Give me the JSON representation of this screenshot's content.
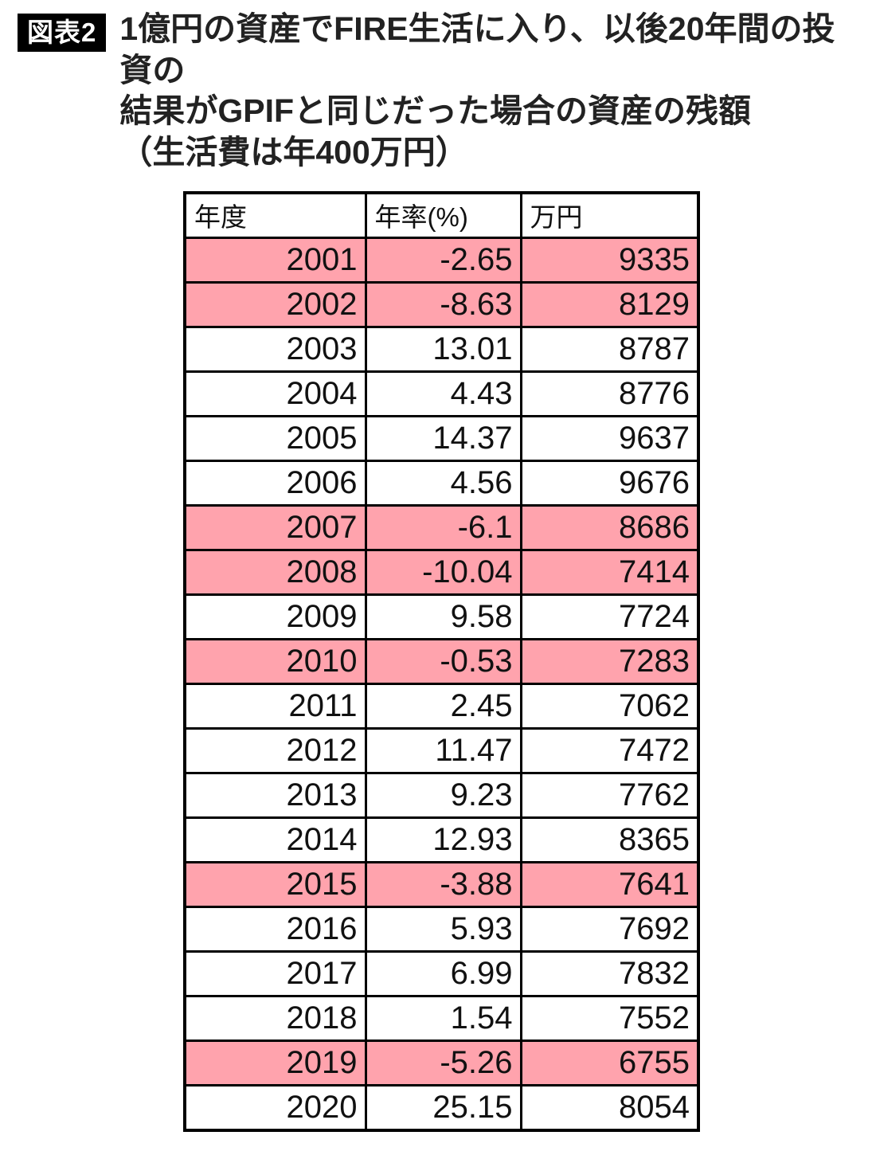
{
  "header": {
    "badge": "図表2",
    "title_lines": [
      "1億円の資産でFIRE生活に入り、以後20年間の投資の",
      "結果がGPIFと同じだった場合の資産の残額",
      "（生活費は年400万円）"
    ]
  },
  "table": {
    "columns": [
      "年度",
      "年率(%)",
      "万円"
    ],
    "rows": [
      {
        "year": "2001",
        "rate": "-2.65",
        "amount": "9335",
        "highlight": true
      },
      {
        "year": "2002",
        "rate": "-8.63",
        "amount": "8129",
        "highlight": true
      },
      {
        "year": "2003",
        "rate": "13.01",
        "amount": "8787",
        "highlight": false
      },
      {
        "year": "2004",
        "rate": "4.43",
        "amount": "8776",
        "highlight": false
      },
      {
        "year": "2005",
        "rate": "14.37",
        "amount": "9637",
        "highlight": false
      },
      {
        "year": "2006",
        "rate": "4.56",
        "amount": "9676",
        "highlight": false
      },
      {
        "year": "2007",
        "rate": "-6.1",
        "amount": "8686",
        "highlight": true
      },
      {
        "year": "2008",
        "rate": "-10.04",
        "amount": "7414",
        "highlight": true
      },
      {
        "year": "2009",
        "rate": "9.58",
        "amount": "7724",
        "highlight": false
      },
      {
        "year": "2010",
        "rate": "-0.53",
        "amount": "7283",
        "highlight": true
      },
      {
        "year": "2011",
        "rate": "2.45",
        "amount": "7062",
        "highlight": false
      },
      {
        "year": "2012",
        "rate": "11.47",
        "amount": "7472",
        "highlight": false
      },
      {
        "year": "2013",
        "rate": "9.23",
        "amount": "7762",
        "highlight": false
      },
      {
        "year": "2014",
        "rate": "12.93",
        "amount": "8365",
        "highlight": false
      },
      {
        "year": "2015",
        "rate": "-3.88",
        "amount": "7641",
        "highlight": true
      },
      {
        "year": "2016",
        "rate": "5.93",
        "amount": "7692",
        "highlight": false
      },
      {
        "year": "2017",
        "rate": "6.99",
        "amount": "7832",
        "highlight": false
      },
      {
        "year": "2018",
        "rate": "1.54",
        "amount": "7552",
        "highlight": false
      },
      {
        "year": "2019",
        "rate": "-5.26",
        "amount": "6755",
        "highlight": true
      },
      {
        "year": "2020",
        "rate": "25.15",
        "amount": "8054",
        "highlight": false
      }
    ]
  },
  "colors": {
    "row_highlight": "#ffa3ad",
    "badge_bg": "#000000",
    "badge_text": "#ffffff",
    "border": "#000000"
  },
  "chart_data": {
    "type": "table",
    "title": "1億円の資産でFIRE生活に入り、以後20年間の投資の結果がGPIFと同じだった場合の資産の残額（生活費は年400万円）",
    "columns": [
      "年度",
      "年率(%)",
      "万円"
    ],
    "rows": [
      [
        2001,
        -2.65,
        9335
      ],
      [
        2002,
        -8.63,
        8129
      ],
      [
        2003,
        13.01,
        8787
      ],
      [
        2004,
        4.43,
        8776
      ],
      [
        2005,
        14.37,
        9637
      ],
      [
        2006,
        4.56,
        9676
      ],
      [
        2007,
        -6.1,
        8686
      ],
      [
        2008,
        -10.04,
        7414
      ],
      [
        2009,
        9.58,
        7724
      ],
      [
        2010,
        -0.53,
        7283
      ],
      [
        2011,
        2.45,
        7062
      ],
      [
        2012,
        11.47,
        7472
      ],
      [
        2013,
        9.23,
        7762
      ],
      [
        2014,
        12.93,
        8365
      ],
      [
        2015,
        -3.88,
        7641
      ],
      [
        2016,
        5.93,
        7692
      ],
      [
        2017,
        6.99,
        7832
      ],
      [
        2018,
        1.54,
        7552
      ],
      [
        2019,
        -5.26,
        6755
      ],
      [
        2020,
        25.15,
        8054
      ]
    ],
    "highlighted_rows_years": [
      2001,
      2002,
      2007,
      2008,
      2010,
      2015,
      2019
    ]
  }
}
